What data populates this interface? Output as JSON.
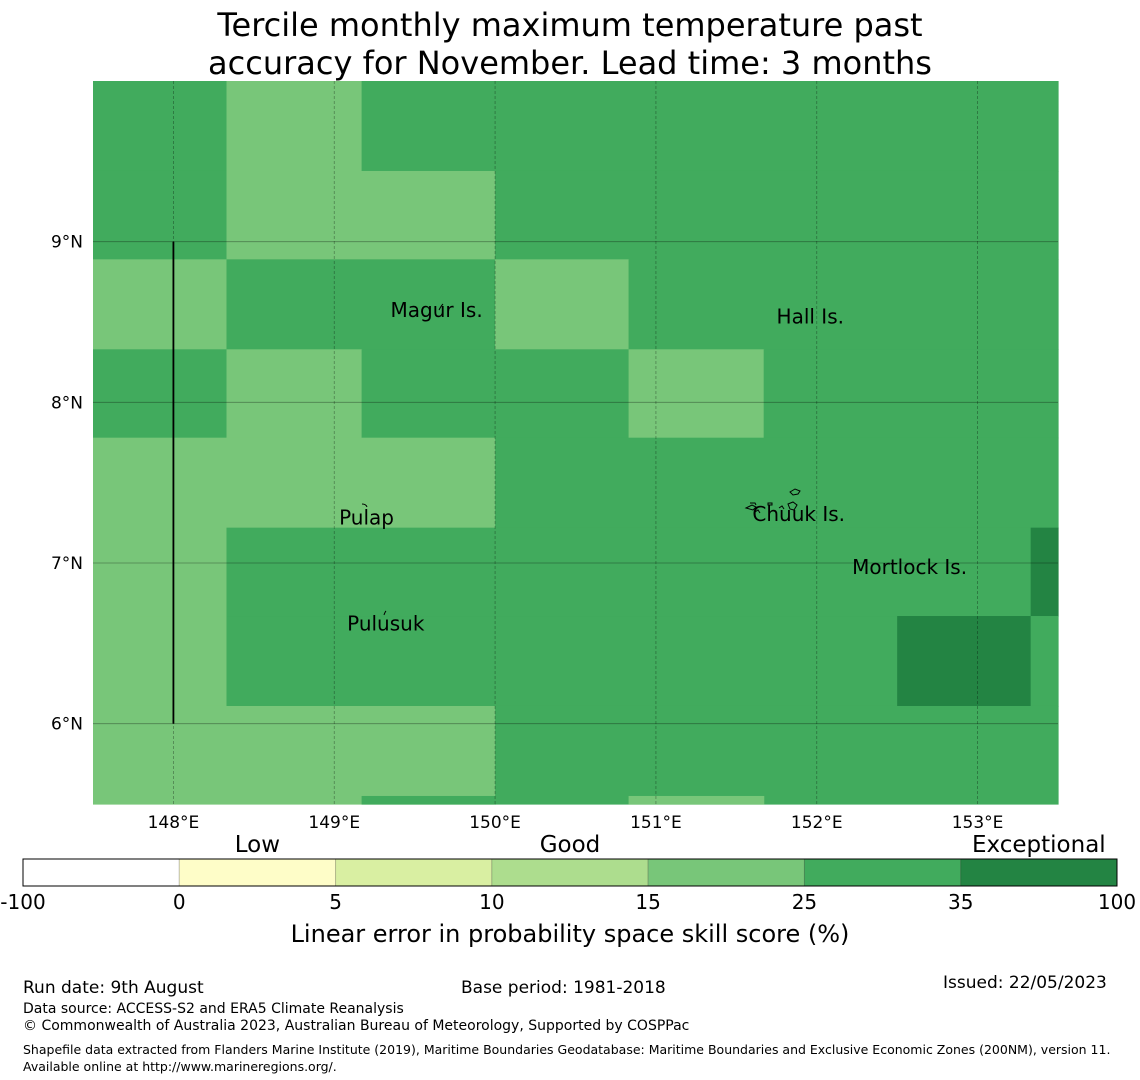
{
  "title_line1": "Tercile monthly maximum temperature past",
  "title_line2": "accuracy for November. Lead time: 3 months",
  "map": {
    "lon_labels": [
      "148°E",
      "149°E",
      "150°E",
      "151°E",
      "152°E",
      "153°E"
    ],
    "lon_values": [
      148,
      149,
      150,
      151,
      152,
      153
    ],
    "lat_labels": [
      "9°N",
      "8°N",
      "7°N",
      "6°N"
    ],
    "lat_values": [
      9,
      8,
      7,
      6
    ],
    "extent": {
      "lon_min": 147.5,
      "lon_max": 153.5,
      "lat_min": 5.5,
      "lat_max": 10.0
    },
    "cells": [
      {
        "lon0": 147.5,
        "lon1": 148.33,
        "lat0": 9.44,
        "lat1": 10.0,
        "skill": 30
      },
      {
        "lon0": 148.33,
        "lon1": 149.17,
        "lat0": 9.44,
        "lat1": 10.0,
        "skill": 20
      },
      {
        "lon0": 149.17,
        "lon1": 153.5,
        "lat0": 9.44,
        "lat1": 10.0,
        "skill": 30
      },
      {
        "lon0": 147.5,
        "lon1": 148.33,
        "lat0": 8.89,
        "lat1": 9.44,
        "skill": 30
      },
      {
        "lon0": 148.33,
        "lon1": 150.0,
        "lat0": 8.89,
        "lat1": 9.44,
        "skill": 20
      },
      {
        "lon0": 150.0,
        "lon1": 153.5,
        "lat0": 8.89,
        "lat1": 9.44,
        "skill": 30
      },
      {
        "lon0": 147.5,
        "lon1": 148.33,
        "lat0": 8.33,
        "lat1": 8.89,
        "skill": 20
      },
      {
        "lon0": 148.33,
        "lon1": 150.0,
        "lat0": 8.33,
        "lat1": 8.89,
        "skill": 30
      },
      {
        "lon0": 150.0,
        "lon1": 150.83,
        "lat0": 8.33,
        "lat1": 8.89,
        "skill": 20
      },
      {
        "lon0": 150.83,
        "lon1": 153.5,
        "lat0": 8.33,
        "lat1": 8.89,
        "skill": 30
      },
      {
        "lon0": 147.5,
        "lon1": 148.33,
        "lat0": 7.78,
        "lat1": 8.33,
        "skill": 30
      },
      {
        "lon0": 148.33,
        "lon1": 149.17,
        "lat0": 7.78,
        "lat1": 8.33,
        "skill": 20
      },
      {
        "lon0": 149.17,
        "lon1": 150.83,
        "lat0": 7.78,
        "lat1": 8.33,
        "skill": 30
      },
      {
        "lon0": 150.83,
        "lon1": 151.67,
        "lat0": 7.78,
        "lat1": 8.33,
        "skill": 20
      },
      {
        "lon0": 151.67,
        "lon1": 153.5,
        "lat0": 7.78,
        "lat1": 8.33,
        "skill": 30
      },
      {
        "lon0": 147.5,
        "lon1": 150.0,
        "lat0": 7.22,
        "lat1": 7.78,
        "skill": 20
      },
      {
        "lon0": 150.0,
        "lon1": 153.5,
        "lat0": 7.22,
        "lat1": 7.78,
        "skill": 30
      },
      {
        "lon0": 147.5,
        "lon1": 148.33,
        "lat0": 6.67,
        "lat1": 7.22,
        "skill": 20
      },
      {
        "lon0": 148.33,
        "lon1": 153.33,
        "lat0": 6.67,
        "lat1": 7.22,
        "skill": 30
      },
      {
        "lon0": 153.33,
        "lon1": 153.5,
        "lat0": 6.67,
        "lat1": 7.22,
        "skill": 40
      },
      {
        "lon0": 147.5,
        "lon1": 148.33,
        "lat0": 6.11,
        "lat1": 6.67,
        "skill": 20
      },
      {
        "lon0": 148.33,
        "lon1": 152.5,
        "lat0": 6.11,
        "lat1": 6.67,
        "skill": 30
      },
      {
        "lon0": 152.5,
        "lon1": 153.33,
        "lat0": 6.11,
        "lat1": 6.67,
        "skill": 40
      },
      {
        "lon0": 153.33,
        "lon1": 153.5,
        "lat0": 6.11,
        "lat1": 6.67,
        "skill": 30
      },
      {
        "lon0": 147.5,
        "lon1": 150.0,
        "lat0": 5.5,
        "lat1": 6.11,
        "skill": 20
      },
      {
        "lon0": 150.0,
        "lon1": 153.5,
        "lat0": 5.5,
        "lat1": 6.11,
        "skill": 30
      },
      {
        "lon0": 149.17,
        "lon1": 150.0,
        "lat0": 5.5,
        "lat1": 5.55,
        "skill": 30
      },
      {
        "lon0": 150.83,
        "lon1": 151.67,
        "lat0": 5.5,
        "lat1": 5.55,
        "skill": 20
      }
    ],
    "boundary_line": {
      "lon": 148.0,
      "lat_from": 9.0,
      "lat_to": 6.0
    },
    "places": [
      {
        "name": "Magur Is.",
        "lon": 149.35,
        "lat": 8.53
      },
      {
        "name": "Hall Is.",
        "lon": 151.75,
        "lat": 8.49
      },
      {
        "name": "Pulap",
        "lon": 149.03,
        "lat": 7.24
      },
      {
        "name": "Chuuk Is.",
        "lon": 151.6,
        "lat": 7.26
      },
      {
        "name": "Mortlock Is.",
        "lon": 152.22,
        "lat": 6.93
      },
      {
        "name": "Pulusuk",
        "lon": 149.08,
        "lat": 6.58
      }
    ]
  },
  "legend": {
    "categories": [
      {
        "label": "Low",
        "anchor_index": 1
      },
      {
        "label": "Good",
        "anchor_index": 3
      },
      {
        "label": "Exceptional",
        "anchor_index": 6
      }
    ],
    "bins": [
      {
        "from": "-100",
        "to": "0",
        "color": "#ffffff"
      },
      {
        "from": "0",
        "to": "5",
        "color": "#fefdc8"
      },
      {
        "from": "5",
        "to": "10",
        "color": "#d9efa2"
      },
      {
        "from": "10",
        "to": "15",
        "color": "#addd8e"
      },
      {
        "from": "15",
        "to": "25",
        "color": "#78c679"
      },
      {
        "from": "25",
        "to": "35",
        "color": "#41ab5d"
      },
      {
        "from": "35",
        "to": "100",
        "color": "#238443"
      }
    ],
    "tick_labels": [
      "-100",
      "0",
      "5",
      "10",
      "15",
      "25",
      "35",
      "100"
    ],
    "axis_label": "Linear error in probability space skill score (%)"
  },
  "footer": {
    "run_date": "Run date: 9th August",
    "base_period": "Base period: 1981-2018",
    "issued": "Issued: 22/05/2023",
    "data_source": "Data source: ACCESS-S2 and ERA5 Climate Reanalysis",
    "copyright": "© Commonwealth of Australia 2023, Australian Bureau of Meteorology, Supported by COSPPac",
    "shapefile_note": "Shapefile data extracted from Flanders Marine Institute (2019), Maritime Boundaries Geodatabase: Maritime Boundaries and Exclusive Economic Zones (200NM), version 11. Available online at http://www.marineregions.org/."
  }
}
